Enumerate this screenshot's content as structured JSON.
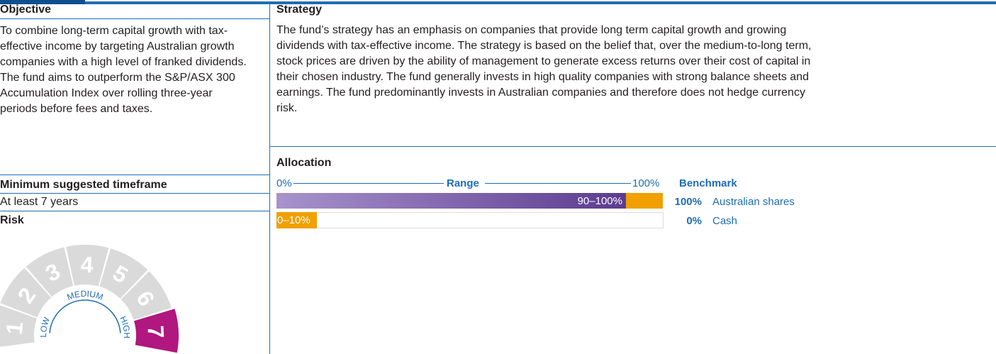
{
  "objective": {
    "heading": "Objective",
    "text": "To combine long-term capital growth with tax-effective income by targeting Australian growth companies with a high level of franked dividends. The fund aims to outperform the S&P/ASX 300 Accumulation Index over rolling three-year periods before fees and taxes."
  },
  "timeframe": {
    "heading": "Minimum suggested timeframe",
    "text": "At least 7 years"
  },
  "risk": {
    "heading": "Risk",
    "levels": [
      "1",
      "2",
      "3",
      "4",
      "5",
      "6",
      "7"
    ],
    "bands": [
      "LOW",
      "MEDIUM",
      "HIGH"
    ]
  },
  "strategy": {
    "heading": "Strategy",
    "text": "The fund’s strategy has an emphasis on companies that provide long term capital growth and growing dividends with tax-effective income. The strategy is based on the belief that, over the medium-to-long term, stock prices are driven by the ability of management to generate excess returns over their cost of capital in their chosen industry. The fund generally invests in high quality companies with strong balance sheets and earnings. The fund predominantly invests in Australian companies and therefore does not hedge currency risk."
  },
  "allocation": {
    "heading": "Allocation",
    "scale": {
      "min": "0%",
      "label": "Range",
      "max": "100%"
    },
    "benchmark_heading": "Benchmark",
    "rows": [
      {
        "range": "90–100%",
        "benchmark": "100%",
        "asset": "Australian shares"
      },
      {
        "range": "0–10%",
        "benchmark": "0%",
        "asset": "Cash"
      }
    ]
  }
}
